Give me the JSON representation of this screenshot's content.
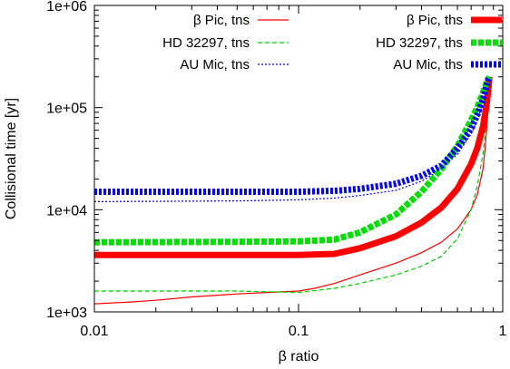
{
  "chart_data": {
    "type": "line",
    "title": "",
    "xlabel": "β ratio",
    "ylabel": "Collisional time [yr]",
    "xscale": "log",
    "yscale": "log",
    "xlim": [
      0.01,
      1
    ],
    "ylim": [
      1000,
      1000000
    ],
    "grid": false,
    "legend_position": "top",
    "x_ticks": [
      {
        "value": 0.01,
        "label": "0.01"
      },
      {
        "value": 0.1,
        "label": "0.1"
      },
      {
        "value": 1,
        "label": "1"
      }
    ],
    "y_ticks": [
      {
        "value": 1000,
        "label": "1e+03"
      },
      {
        "value": 10000,
        "label": "1e+04"
      },
      {
        "value": 100000,
        "label": "1e+05"
      },
      {
        "value": 1000000,
        "label": "1e+06"
      }
    ],
    "series": [
      {
        "name": "β Pic, tns",
        "color": "#ff0000",
        "line_style": "solid",
        "weight": "thin",
        "x": [
          0.01,
          0.015,
          0.02,
          0.03,
          0.05,
          0.07,
          0.1,
          0.12,
          0.15,
          0.2,
          0.3,
          0.4,
          0.5,
          0.6,
          0.7,
          0.75,
          0.8,
          0.82,
          0.84,
          0.85,
          0.86
        ],
        "y": [
          1200,
          1250,
          1300,
          1400,
          1500,
          1550,
          1600,
          1700,
          1900,
          2300,
          3000,
          3800,
          4800,
          6500,
          10000,
          14000,
          25000,
          40000,
          75000,
          120000,
          200000
        ]
      },
      {
        "name": "HD 32297, tns",
        "color": "#00cc00",
        "line_style": "dashed",
        "weight": "thin",
        "x": [
          0.01,
          0.02,
          0.05,
          0.1,
          0.15,
          0.2,
          0.3,
          0.4,
          0.5,
          0.6,
          0.7,
          0.75,
          0.8,
          0.83,
          0.85,
          0.86
        ],
        "y": [
          1600,
          1600,
          1600,
          1550,
          1700,
          1900,
          2300,
          2800,
          3500,
          5200,
          10000,
          17000,
          35000,
          70000,
          130000,
          200000
        ]
      },
      {
        "name": "AU Mic, tns",
        "color": "#0000ff",
        "line_style": "dotted",
        "weight": "thin",
        "x": [
          0.01,
          0.05,
          0.1,
          0.15,
          0.2,
          0.3,
          0.4,
          0.5,
          0.6,
          0.7,
          0.75,
          0.8,
          0.83,
          0.85,
          0.86
        ],
        "y": [
          12000,
          12200,
          12500,
          13000,
          13800,
          15500,
          19000,
          25000,
          35000,
          55000,
          75000,
          110000,
          150000,
          185000,
          200000
        ]
      },
      {
        "name": "β Pic, ths",
        "color": "#ff0000",
        "line_style": "solid",
        "weight": "thick",
        "x": [
          0.01,
          0.05,
          0.1,
          0.15,
          0.2,
          0.3,
          0.4,
          0.5,
          0.6,
          0.7,
          0.75,
          0.8,
          0.83,
          0.85,
          0.86
        ],
        "y": [
          3600,
          3600,
          3600,
          3700,
          4200,
          5500,
          7500,
          10500,
          16000,
          28000,
          40000,
          65000,
          100000,
          150000,
          200000
        ]
      },
      {
        "name": "HD 32297, ths",
        "color": "#00dd00",
        "line_style": "dashed",
        "weight": "thick",
        "x": [
          0.01,
          0.05,
          0.1,
          0.15,
          0.2,
          0.3,
          0.4,
          0.5,
          0.6,
          0.7,
          0.75,
          0.8,
          0.83,
          0.85,
          0.86
        ],
        "y": [
          4800,
          4850,
          4900,
          5100,
          6000,
          9000,
          15000,
          25000,
          42000,
          75000,
          100000,
          140000,
          170000,
          190000,
          200000
        ]
      },
      {
        "name": "AU Mic, ths",
        "color": "#0000ff",
        "line_style": "dotted",
        "weight": "thick",
        "x": [
          0.01,
          0.05,
          0.1,
          0.15,
          0.2,
          0.3,
          0.4,
          0.5,
          0.6,
          0.7,
          0.75,
          0.8,
          0.83,
          0.85,
          0.86
        ],
        "y": [
          15000,
          15000,
          15000,
          15300,
          16000,
          18000,
          21500,
          27000,
          40000,
          62000,
          85000,
          120000,
          160000,
          190000,
          200000
        ]
      }
    ],
    "legend_layout": [
      [
        0,
        1,
        2
      ],
      [
        3,
        4,
        5
      ]
    ]
  }
}
